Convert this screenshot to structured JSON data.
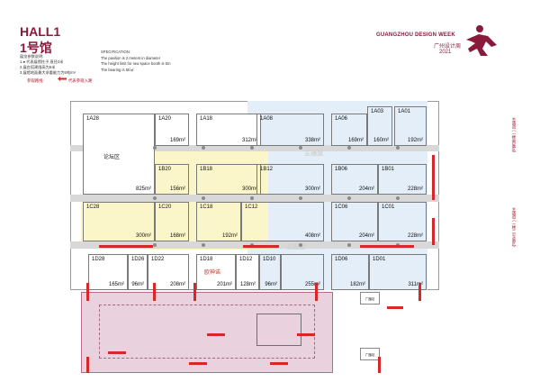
{
  "header": {
    "hall": "HALL1",
    "hall_cn": "1号馆",
    "notes_title": "展览参数说明:",
    "notes": [
      "1.● 代表展馆柱子,直径2米",
      "2.展台搭建限高为5米",
      "3.展馆地面最大承重能力为5吨/m²"
    ],
    "spec_title": "SPECIFICATION:",
    "spec": [
      "The pavilion is 2 meters in diameter",
      "The height limit for raw space booth is 5m",
      "The bearing is 5t/㎡"
    ],
    "legend_label": "参观路线:",
    "legend_text": "代表参观入路"
  },
  "logo": {
    "title": "GUANGZHOU DESIGN WEEK",
    "cn": "广州设计周",
    "year": "2021",
    "color": "#8a1a3c"
  },
  "booths": [
    {
      "id": "1A28",
      "area": "825m²",
      "sub": "论坛区"
    },
    {
      "id": "1A20",
      "area": "169m²"
    },
    {
      "id": "1A18",
      "area": "312m²"
    },
    {
      "id": "1A08",
      "area": "338m²"
    },
    {
      "id": "1A06",
      "area": "169m²"
    },
    {
      "id": "1A03",
      "area": "160m²"
    },
    {
      "id": "1A01",
      "area": "192m²"
    },
    {
      "id": "1B20",
      "area": "156m²"
    },
    {
      "id": "1B18",
      "area": ""
    },
    {
      "id": "1B12",
      "area": "300m²"
    },
    {
      "id": "1B06",
      "area": "204m²"
    },
    {
      "id": "1B01",
      "area": "228m²"
    },
    {
      "id": "1C28",
      "area": "300m²"
    },
    {
      "id": "1C20",
      "area": "168m²"
    },
    {
      "id": "1C18",
      "area": "192m²"
    },
    {
      "id": "1C12",
      "area": "408m²"
    },
    {
      "id": "1C06",
      "area": "204m²"
    },
    {
      "id": "1C01",
      "area": "228m²"
    },
    {
      "id": "1D28",
      "area": "165m²"
    },
    {
      "id": "1D26",
      "area": "96m²"
    },
    {
      "id": "1D22",
      "area": "208m²"
    },
    {
      "id": "1D18",
      "area": "201m²",
      "sub": "欧神诺"
    },
    {
      "id": "1D12",
      "area": "128m²"
    },
    {
      "id": "1D10",
      "area": "96m²"
    },
    {
      "id": "",
      "area": "255m²"
    },
    {
      "id": "1D06",
      "area": "182m²"
    },
    {
      "id": "1D01",
      "area": "311m²"
    }
  ],
  "extra_labels": {
    "b18_area": "300m²",
    "main_path": "主通道",
    "broadcast_1": "广播站",
    "broadcast_2": "广播站",
    "right_top": "主通道 (一楼南展区)",
    "right_bottom": "主通道 (一楼二号展区)"
  },
  "colors": {
    "route": "#d62828",
    "pink": "#e9d2de",
    "blue": "#e3eef8",
    "yellow": "#fbf6c9"
  }
}
